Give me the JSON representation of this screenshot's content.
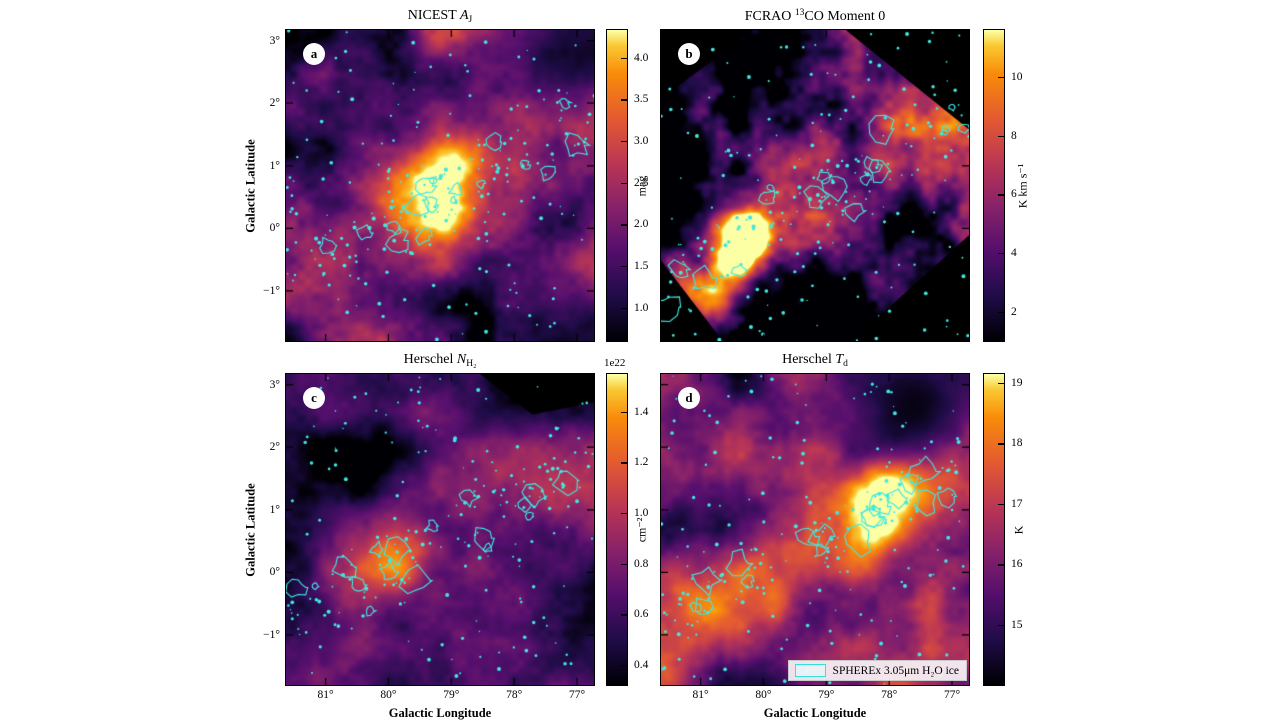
{
  "chart_data": {
    "type": "heatmap",
    "layout": "2x2 panels, shared axes, right-side colorbars, inferno colormap with cyan contour overlay",
    "colormap": "inferno",
    "contour_color": "#40e8e2",
    "background": "#ffffff",
    "xlabel": "Galactic Longitude",
    "ylabel": "Galactic Latitude",
    "xlim_deg": [
      81.63,
      76.73
    ],
    "ylim_deg": [
      -1.8,
      3.17
    ],
    "x_ticks": {
      "values": [
        81,
        80,
        79,
        78,
        77
      ],
      "labels": [
        "81°",
        "80°",
        "79°",
        "78°",
        "77°"
      ]
    },
    "y_ticks": {
      "values": [
        3,
        2,
        1,
        0,
        -1
      ],
      "labels": [
        "3°",
        "2°",
        "1°",
        "0°",
        "−1°"
      ]
    },
    "legend": {
      "swatch": "cyan-contour-rectangle",
      "label": "SPHEREx 3.05μm H₂O ice"
    },
    "panels": [
      {
        "letter": "a",
        "title_pre": "NICEST ",
        "title_var": "A",
        "title_sub": "J",
        "title_plain": "NICEST A_J",
        "colorbar": {
          "unit": "mag",
          "vmin": 0.6,
          "vmax": 4.33,
          "ticks": [
            4.0,
            3.5,
            3.0,
            2.5,
            2.0,
            1.5,
            1.0
          ],
          "tick_labels": [
            "4.0",
            "3.5",
            "3.0",
            "2.5",
            "2.0",
            "1.5",
            "1.0"
          ]
        }
      },
      {
        "letter": "b",
        "title_pre": "FCRAO ",
        "title_sup": "13",
        "title_post": "CO Moment 0",
        "title_plain": "FCRAO 13CO Moment 0",
        "colorbar": {
          "unit": "K km s⁻¹",
          "vmin": 1.0,
          "vmax": 11.6,
          "ticks": [
            10,
            8,
            6,
            4,
            2
          ],
          "tick_labels": [
            "10",
            "8",
            "6",
            "4",
            "2"
          ]
        }
      },
      {
        "letter": "c",
        "title_pre": "Herschel ",
        "title_var": "N",
        "title_sub": "H₂",
        "title_plain": "Herschel N_H2",
        "colorbar": {
          "unit": "cm⁻²",
          "scale": "1e22",
          "vmin": 0.32,
          "vmax": 1.55,
          "ticks": [
            1.4,
            1.2,
            1.0,
            0.8,
            0.6,
            0.4
          ],
          "tick_labels": [
            "1.4",
            "1.2",
            "1.0",
            "0.8",
            "0.6",
            "0.4"
          ]
        }
      },
      {
        "letter": "d",
        "title_pre": "Herschel ",
        "title_var": "T",
        "title_sub": "d",
        "title_plain": "Herschel T_d",
        "colorbar": {
          "unit": "K",
          "vmin": 14.0,
          "vmax": 19.15,
          "ticks": [
            19,
            18,
            17,
            16,
            15
          ],
          "tick_labels": [
            "19",
            "18",
            "17",
            "16",
            "15"
          ]
        }
      }
    ]
  }
}
